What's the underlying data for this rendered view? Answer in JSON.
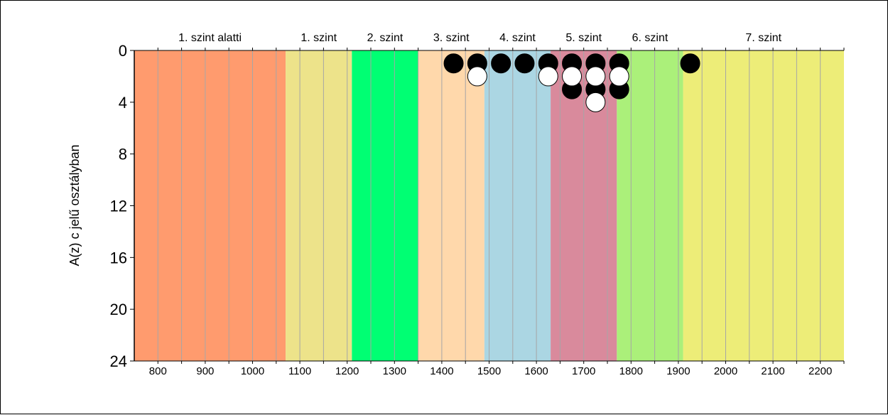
{
  "chart_data": {
    "type": "scatter",
    "title": "",
    "xlabel": "",
    "ylabel": "A(z) c jelű osztályban",
    "xlim": [
      750,
      2250
    ],
    "ylim": [
      0,
      24
    ],
    "y_inverted": true,
    "x_ticks": [
      "800",
      "900",
      "1000",
      "1100",
      "1200",
      "1300",
      "1400",
      "1500",
      "1600",
      "1700",
      "1800",
      "1900",
      "2000",
      "2100",
      "2200"
    ],
    "y_ticks": [
      "0",
      "4",
      "8",
      "12",
      "16",
      "20",
      "24"
    ],
    "grid": "vertical",
    "bands": [
      {
        "label": "1. szint alatti",
        "from": 750,
        "to": 1070,
        "color": "#FF9B6E"
      },
      {
        "label": "1. szint",
        "from": 1070,
        "to": 1210,
        "color": "#EDE38A"
      },
      {
        "label": "2. szint",
        "from": 1210,
        "to": 1350,
        "color": "#00FF73"
      },
      {
        "label": "3. szint",
        "from": 1350,
        "to": 1490,
        "color": "#FFD8AB"
      },
      {
        "label": "4. szint",
        "from": 1490,
        "to": 1630,
        "color": "#ABD6E3"
      },
      {
        "label": "5. szint",
        "from": 1630,
        "to": 1770,
        "color": "#D98A9C"
      },
      {
        "label": "6. szint",
        "from": 1770,
        "to": 1910,
        "color": "#ABF07A"
      },
      {
        "label": "7. szint",
        "from": 1910,
        "to": 2250,
        "color": "#EDED78"
      }
    ],
    "series": [
      {
        "color": "#000000",
        "points": [
          {
            "x": 1425,
            "y": 1
          },
          {
            "x": 1475,
            "y": 1
          },
          {
            "x": 1525,
            "y": 1
          },
          {
            "x": 1575,
            "y": 1
          },
          {
            "x": 1625,
            "y": 1
          },
          {
            "x": 1675,
            "y": 1
          },
          {
            "x": 1675,
            "y": 3
          },
          {
            "x": 1725,
            "y": 1
          },
          {
            "x": 1725,
            "y": 3
          },
          {
            "x": 1775,
            "y": 1
          },
          {
            "x": 1775,
            "y": 3
          },
          {
            "x": 1925,
            "y": 1
          }
        ]
      },
      {
        "color": "#FFFFFF",
        "points": [
          {
            "x": 1475,
            "y": 2
          },
          {
            "x": 1625,
            "y": 2
          },
          {
            "x": 1675,
            "y": 2
          },
          {
            "x": 1725,
            "y": 2
          },
          {
            "x": 1725,
            "y": 4
          },
          {
            "x": 1775,
            "y": 2
          }
        ]
      }
    ]
  }
}
